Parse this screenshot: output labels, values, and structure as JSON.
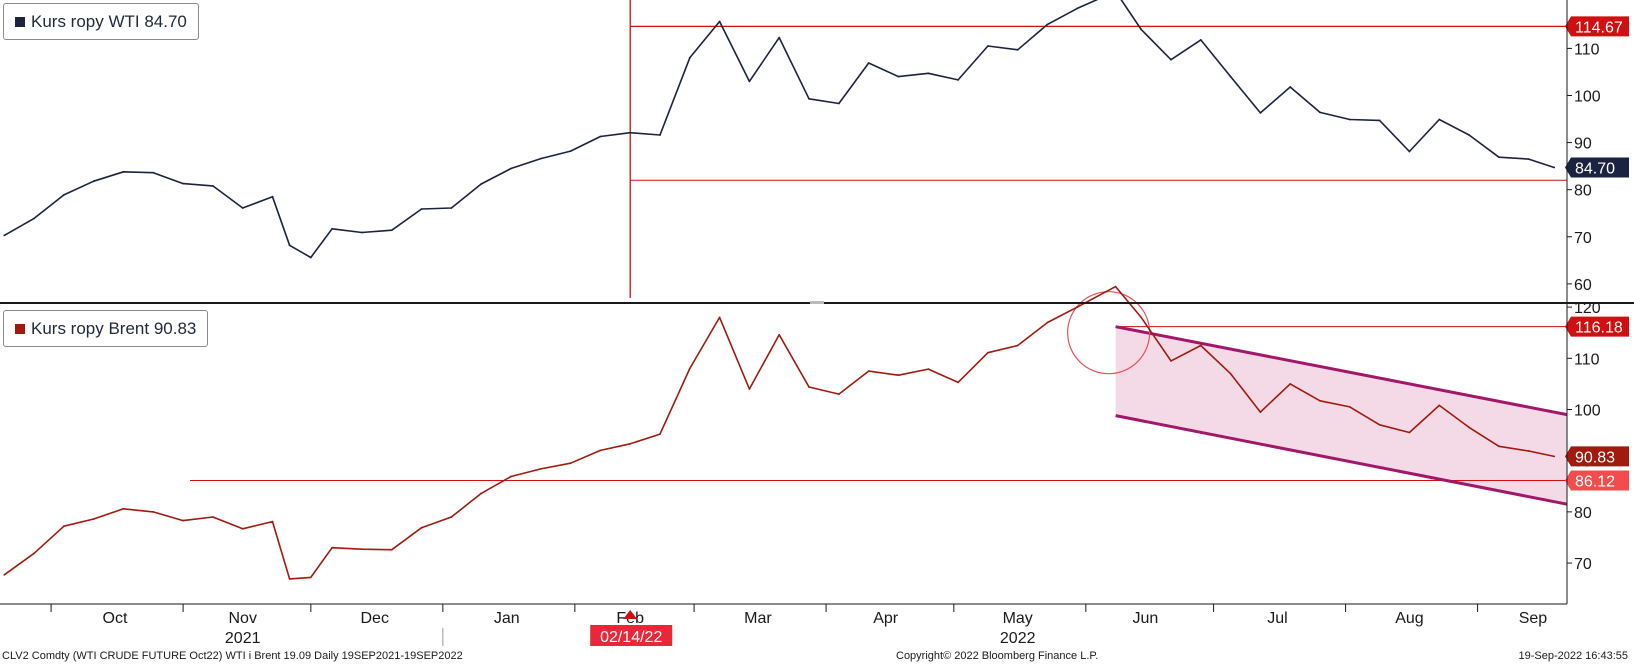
{
  "chart_data": [
    {
      "type": "line",
      "panel": "top",
      "legend_label": "Kurs ropy WTI 84.70",
      "series": [
        {
          "name": "Kurs ropy WTI",
          "color": "#1c2340",
          "last_value": 84.7,
          "x": [
            "2021-09-20",
            "2021-09-27",
            "2021-10-04",
            "2021-10-11",
            "2021-10-18",
            "2021-10-25",
            "2021-11-01",
            "2021-11-08",
            "2021-11-15",
            "2021-11-22",
            "2021-11-26",
            "2021-12-01",
            "2021-12-06",
            "2021-12-13",
            "2021-12-20",
            "2021-12-27",
            "2022-01-03",
            "2022-01-10",
            "2022-01-17",
            "2022-01-24",
            "2022-01-31",
            "2022-02-07",
            "2022-02-14",
            "2022-02-21",
            "2022-02-28",
            "2022-03-07",
            "2022-03-14",
            "2022-03-21",
            "2022-03-28",
            "2022-04-04",
            "2022-04-11",
            "2022-04-18",
            "2022-04-25",
            "2022-05-02",
            "2022-05-09",
            "2022-05-16",
            "2022-05-23",
            "2022-05-30",
            "2022-06-08",
            "2022-06-14",
            "2022-06-21",
            "2022-06-28",
            "2022-07-05",
            "2022-07-12",
            "2022-07-19",
            "2022-07-26",
            "2022-08-02",
            "2022-08-09",
            "2022-08-16",
            "2022-08-23",
            "2022-08-30",
            "2022-09-06",
            "2022-09-13",
            "2022-09-19"
          ],
          "values": [
            70.3,
            73.9,
            78.9,
            81.8,
            83.8,
            83.6,
            81.3,
            80.8,
            76.1,
            78.5,
            68.2,
            65.6,
            71.7,
            70.9,
            71.4,
            75.9,
            76.1,
            81.2,
            84.5,
            86.6,
            88.2,
            91.3,
            92.1,
            91.6,
            108.0,
            115.7,
            103.0,
            112.3,
            99.3,
            98.3,
            106.9,
            104.0,
            104.7,
            103.3,
            110.5,
            109.7,
            115.1,
            118.5,
            122.1,
            114.0,
            107.6,
            111.8,
            104.0,
            96.3,
            101.8,
            96.4,
            94.9,
            94.7,
            88.1,
            94.9,
            91.6,
            86.9,
            86.5,
            84.7
          ]
        }
      ],
      "annotations": {
        "resistance_label": "114.67",
        "support_value": 82,
        "event_date_label": "02/14/22"
      },
      "y_ticks": [
        60,
        70,
        80,
        90,
        100,
        110
      ],
      "ylim": [
        57,
        119
      ]
    },
    {
      "type": "line",
      "panel": "bottom",
      "legend_label": "Kurs ropy Brent 90.83",
      "series": [
        {
          "name": "Kurs ropy Brent",
          "color": "#a11a0e",
          "last_value": 90.83,
          "x": [
            "2021-09-20",
            "2021-09-27",
            "2021-10-04",
            "2021-10-11",
            "2021-10-18",
            "2021-10-25",
            "2021-11-01",
            "2021-11-08",
            "2021-11-15",
            "2021-11-22",
            "2021-11-26",
            "2021-12-01",
            "2021-12-06",
            "2021-12-13",
            "2021-12-20",
            "2021-12-27",
            "2022-01-03",
            "2022-01-10",
            "2022-01-17",
            "2022-01-24",
            "2022-01-31",
            "2022-02-07",
            "2022-02-14",
            "2022-02-21",
            "2022-02-28",
            "2022-03-07",
            "2022-03-14",
            "2022-03-21",
            "2022-03-28",
            "2022-04-04",
            "2022-04-11",
            "2022-04-18",
            "2022-04-25",
            "2022-05-02",
            "2022-05-09",
            "2022-05-16",
            "2022-05-23",
            "2022-05-30",
            "2022-06-08",
            "2022-06-14",
            "2022-06-21",
            "2022-06-28",
            "2022-07-05",
            "2022-07-12",
            "2022-07-19",
            "2022-07-26",
            "2022-08-02",
            "2022-08-09",
            "2022-08-16",
            "2022-08-23",
            "2022-08-30",
            "2022-09-06",
            "2022-09-13",
            "2022-09-19"
          ],
          "values": [
            67.7,
            71.9,
            77.2,
            78.6,
            80.6,
            80.0,
            78.3,
            79.0,
            76.7,
            78.1,
            66.9,
            67.2,
            73.0,
            72.7,
            72.6,
            76.9,
            79.0,
            83.6,
            86.9,
            88.4,
            89.5,
            92.0,
            93.3,
            95.2,
            108.0,
            118.0,
            104.0,
            114.6,
            104.4,
            103.0,
            107.5,
            106.7,
            107.9,
            105.3,
            111.1,
            112.5,
            117.0,
            120.0,
            124.0,
            118.0,
            109.5,
            112.5,
            107.0,
            99.5,
            105.0,
            101.7,
            100.5,
            97.0,
            95.5,
            100.8,
            96.5,
            92.8,
            91.9,
            90.83
          ]
        }
      ],
      "annotations": {
        "peak_label": "116.18",
        "support_label": "86.12"
      },
      "y_ticks": [
        70,
        80,
        90,
        100,
        110,
        120
      ],
      "ylim": [
        62,
        121
      ]
    }
  ],
  "x_axis": {
    "months": [
      "Oct",
      "Nov",
      "Dec",
      "Jan",
      "Feb",
      "Mar",
      "Apr",
      "May",
      "Jun",
      "Jul",
      "Aug",
      "Sep"
    ],
    "years": [
      "2021",
      "2022"
    ]
  },
  "footer": {
    "left": "CLV2 Comdty (WTI CRUDE FUTURE  Oct22) WTI i Brent 19.09  Daily 19SEP2021-19SEP2022",
    "center": "Copyright© 2022 Bloomberg Finance L.P.",
    "right": "19-Sep-2022 16:43:55"
  },
  "colors": {
    "wti": "#1c2340",
    "brent": "#a11a0e",
    "annotation_red": "#d01010",
    "channel_line": "#a3176b",
    "channel_fill": "#f2d3e3"
  }
}
